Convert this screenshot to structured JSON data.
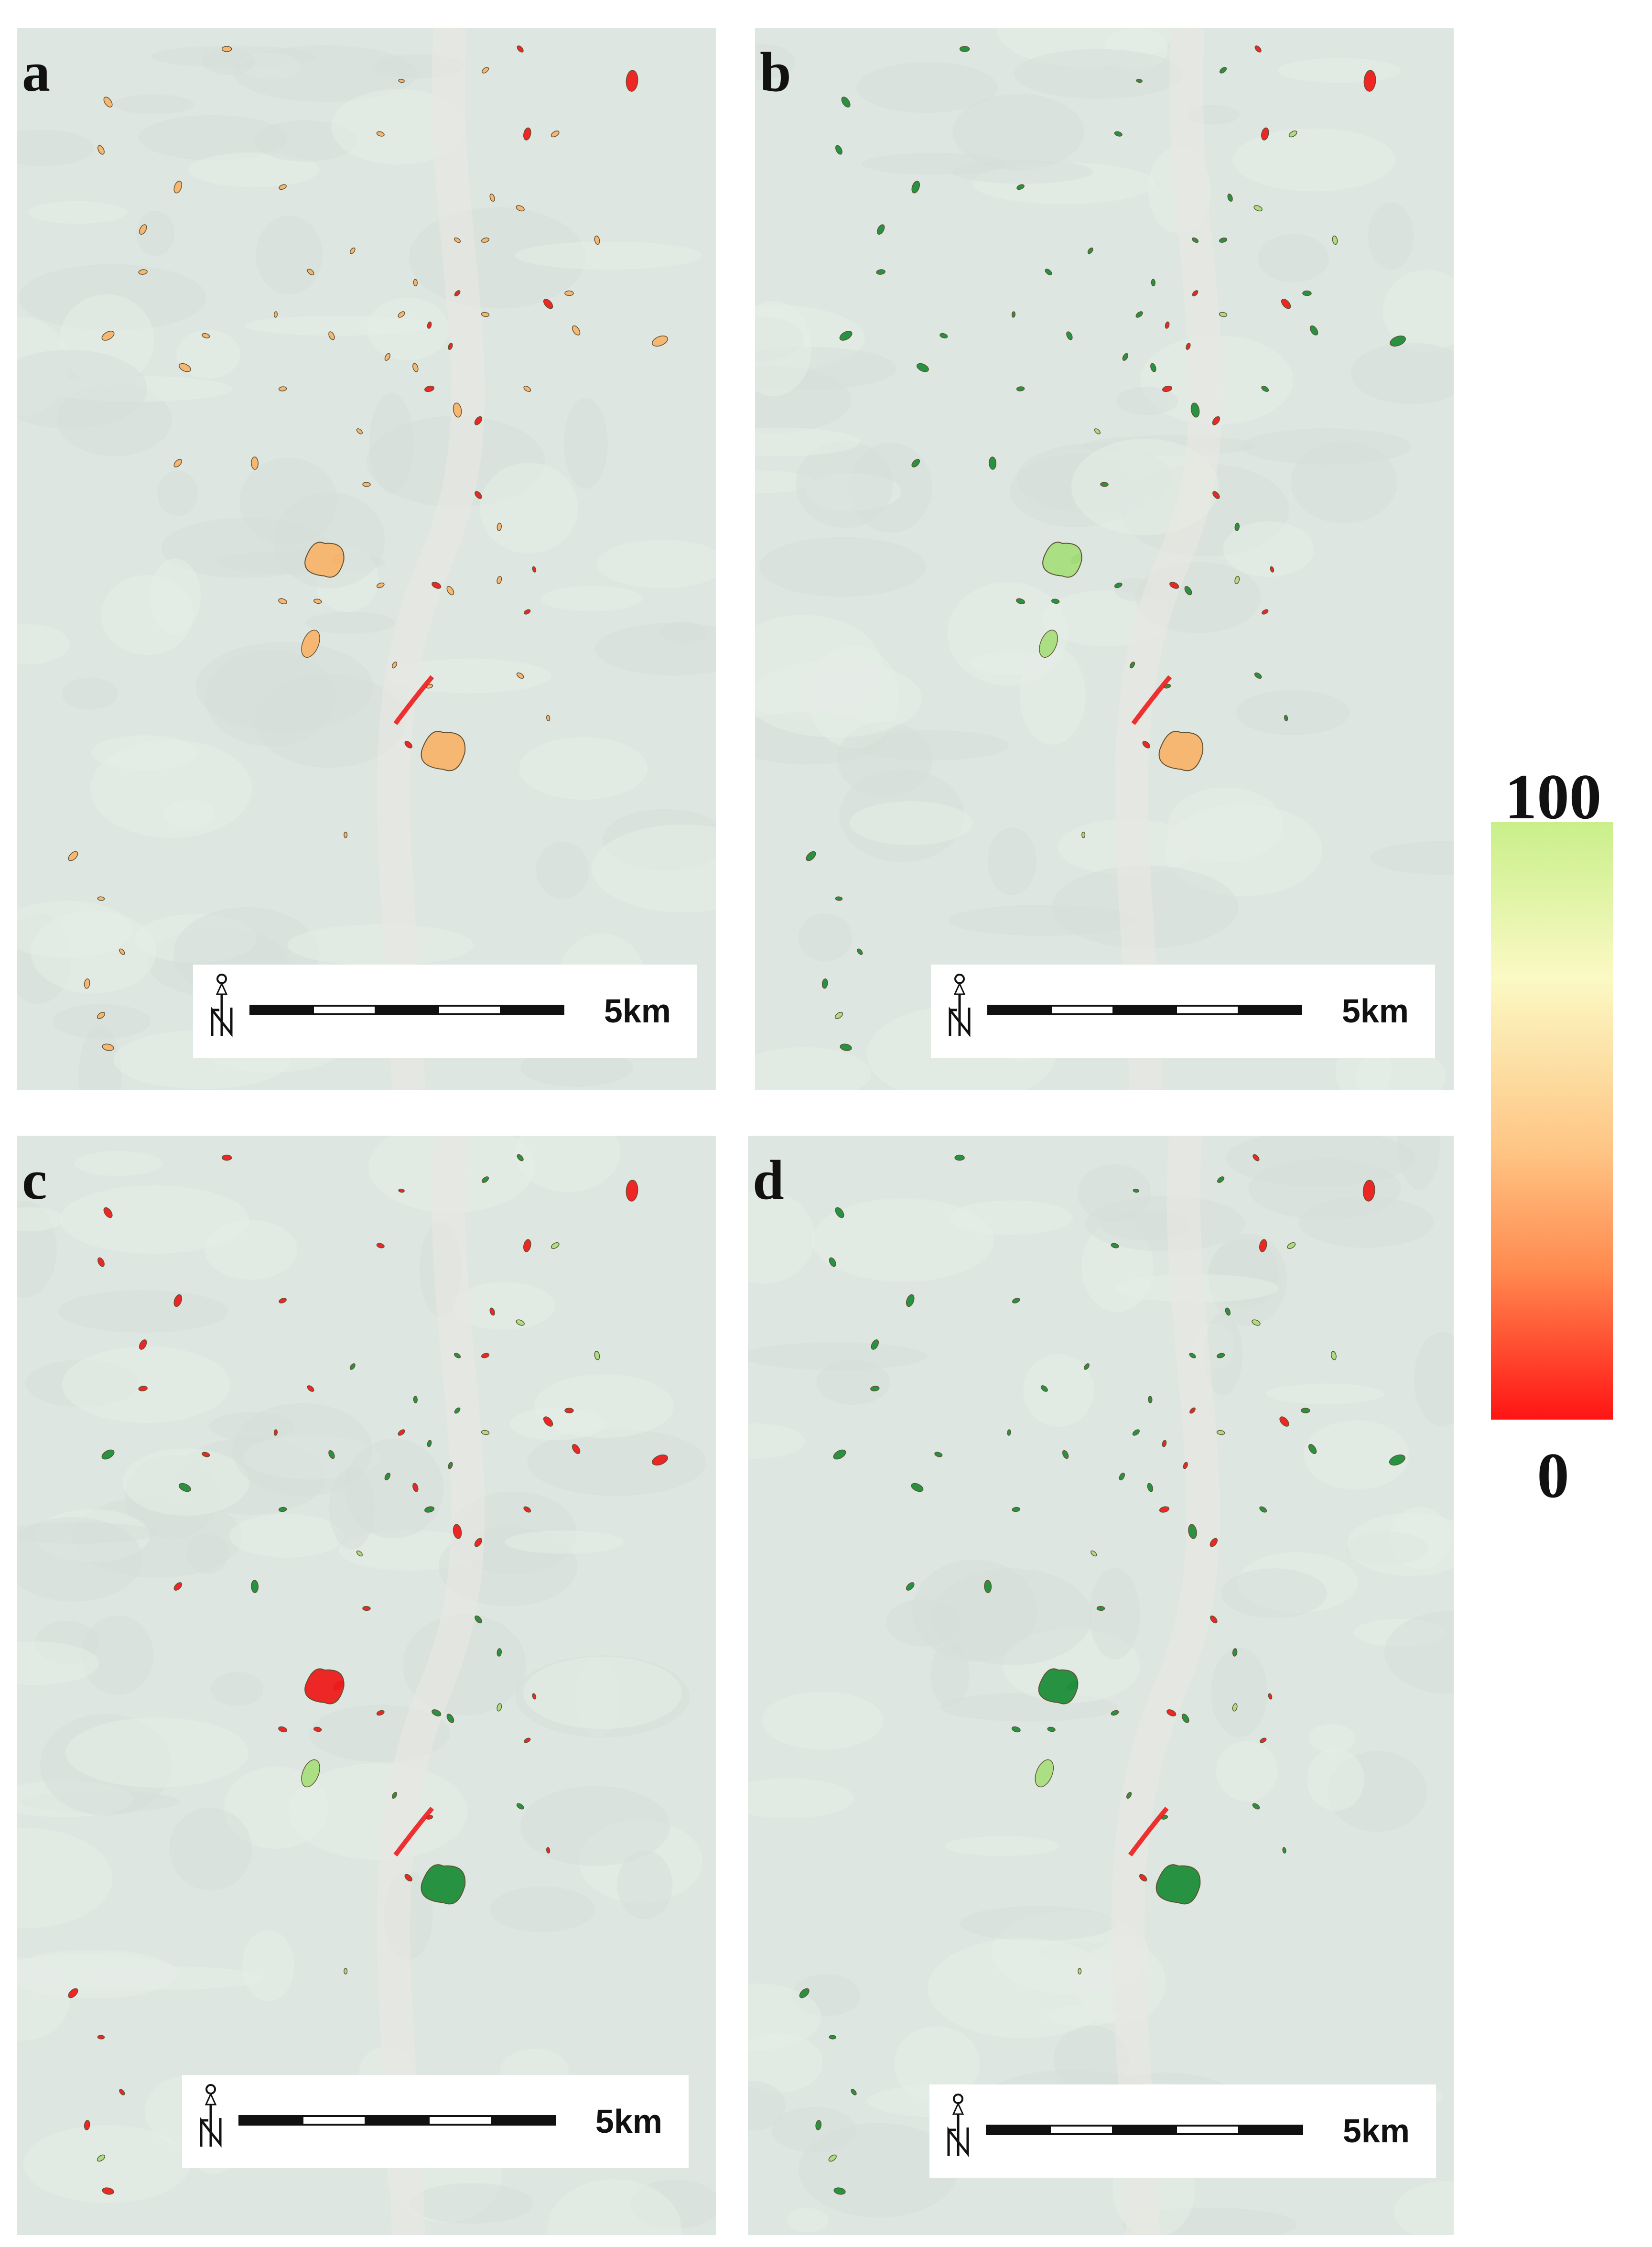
{
  "panels": [
    {
      "label": "a",
      "scale_text": "5km",
      "scheme": "a"
    },
    {
      "label": "b",
      "scale_text": "5km",
      "scheme": "b"
    },
    {
      "label": "c",
      "scale_text": "5km",
      "scheme": "c"
    },
    {
      "label": "d",
      "scale_text": "5km",
      "scheme": "d"
    }
  ],
  "legend": {
    "max_label": "100",
    "min_label": "0",
    "colors": [
      "#c9ef8a",
      "#fbf9c4",
      "#fec584",
      "#ff8a4f",
      "#ff1414"
    ]
  },
  "colors": {
    "map_background": "#dde6e1",
    "dark_green": "#1e8f3a",
    "light_green": "#a8df7e",
    "orange": "#f7b56c",
    "red": "#ee1c1c",
    "outline": "#5a4a2a"
  },
  "icons": [
    "north-arrow-icon"
  ]
}
